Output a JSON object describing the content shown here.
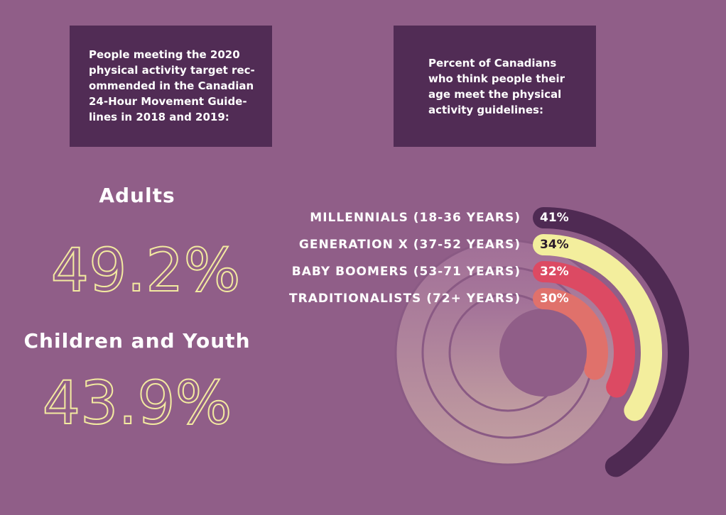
{
  "left_box": {
    "lines": [
      "People meeting the 2020",
      "physical activity target rec-",
      "ommended in the Canadian",
      "24-Hour Movement Guide-",
      "lines in 2018 and 2019:"
    ]
  },
  "right_box": {
    "lines": [
      "Percent of Canadians",
      "who think people their",
      "age meet the physical",
      "activity guidelines:"
    ]
  },
  "stats": [
    {
      "label": "Adults",
      "value": "49.2%"
    },
    {
      "label": "Children and Youth",
      "value": "43.9%"
    }
  ],
  "chart_data": {
    "type": "radial_bar",
    "categories": [
      "MILLENNIALS (18-36 YEARS)",
      "GENERATION X (37-52 YEARS)",
      "BABY BOOMERS (53-71 YEARS)",
      "TRADITIONALISTS (72+ YEARS)"
    ],
    "values": [
      41,
      34,
      32,
      30
    ],
    "value_labels": [
      "41%",
      "34%",
      "32%",
      "30%"
    ],
    "colors": [
      "#4f2a53",
      "#f3ee9d",
      "#dc4a63",
      "#e0716b"
    ]
  }
}
